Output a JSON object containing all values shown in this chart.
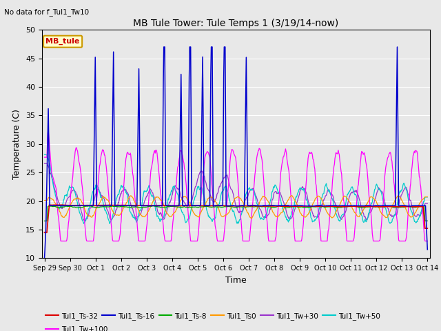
{
  "title": "MB Tule Tower: Tule Temps 1 (3/19/14-now)",
  "subtitle": "No data for f_Tul1_Tw10",
  "ylabel": "Temperature (C)",
  "xlabel": "Time",
  "ylim": [
    10,
    50
  ],
  "x_tick_labels": [
    "Sep 29",
    "Sep 30",
    "Oct 1",
    "Oct 2",
    "Oct 3",
    "Oct 4",
    "Oct 5",
    "Oct 6",
    "Oct 7",
    "Oct 8",
    "Oct 9",
    "Oct 10",
    "Oct 11",
    "Oct 12",
    "Oct 13",
    "Oct 14"
  ],
  "series_colors": {
    "Tul1_Ts-32": "#dd0000",
    "Tul1_Ts-16": "#0000cc",
    "Tul1_Ts-8": "#00aa00",
    "Tul1_Ts0": "#ff9900",
    "Tul1_Tw+30": "#9933cc",
    "Tul1_Tw+50": "#00cccc",
    "Tul1_Tw+100": "#ff00ff"
  },
  "legend_entries": [
    {
      "label": "Tul1_Ts-32",
      "color": "#dd0000"
    },
    {
      "label": "Tul1_Ts-16",
      "color": "#0000cc"
    },
    {
      "label": "Tul1_Ts-8",
      "color": "#00aa00"
    },
    {
      "label": "Tul1_Ts0",
      "color": "#ff9900"
    },
    {
      "label": "Tul1_Tw+30",
      "color": "#9933cc"
    },
    {
      "label": "Tul1_Tw+50",
      "color": "#00cccc"
    },
    {
      "label": "Tul1_Tw+100",
      "color": "#ff00ff"
    }
  ],
  "mb_tule_color": "#cc0000",
  "mb_tule_bg": "#ffffcc",
  "mb_tule_edge": "#cc9900",
  "fig_bg": "#e8e8e8",
  "plot_bg": "#e8e8e8",
  "grid_color": "#ffffff",
  "title_fontsize": 10,
  "axis_fontsize": 9,
  "tick_fontsize": 7,
  "legend_fontsize": 7.5
}
